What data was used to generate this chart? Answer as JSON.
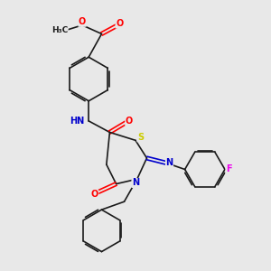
{
  "bg_color": "#e8e8e8",
  "bond_color": "#1a1a1a",
  "atom_colors": {
    "O": "#ff0000",
    "N": "#0000cc",
    "S": "#cccc00",
    "F": "#ee00ee",
    "C": "#1a1a1a"
  },
  "font_size": 7.0,
  "line_width": 1.2
}
